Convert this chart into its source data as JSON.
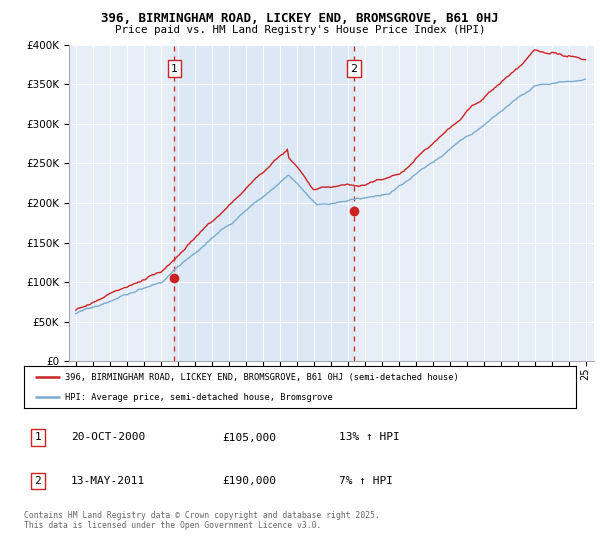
{
  "title": "396, BIRMINGHAM ROAD, LICKEY END, BROMSGROVE, B61 0HJ",
  "subtitle": "Price paid vs. HM Land Registry's House Price Index (HPI)",
  "x_start_year": 1995,
  "x_end_year": 2025,
  "y_min": 0,
  "y_max": 400000,
  "y_ticks": [
    0,
    50000,
    100000,
    150000,
    200000,
    250000,
    300000,
    350000,
    400000
  ],
  "y_tick_labels": [
    "£0",
    "£50K",
    "£100K",
    "£150K",
    "£200K",
    "£250K",
    "£300K",
    "£350K",
    "£400K"
  ],
  "hpi_color": "#7aabcf",
  "price_color": "#cc2222",
  "marker1_year": 2000.8,
  "marker1_price": 105000,
  "marker2_year": 2011.37,
  "marker2_price": 190000,
  "shade_color": "#dce8f5",
  "legend_line1": "396, BIRMINGHAM ROAD, LICKEY END, BROMSGROVE, B61 0HJ (semi-detached house)",
  "legend_line2": "HPI: Average price, semi-detached house, Bromsgrove",
  "table_row1": [
    "1",
    "20-OCT-2000",
    "£105,000",
    "13% ↑ HPI"
  ],
  "table_row2": [
    "2",
    "13-MAY-2011",
    "£190,000",
    "7% ↑ HPI"
  ],
  "footer": "Contains HM Land Registry data © Crown copyright and database right 2025.\nThis data is licensed under the Open Government Licence v3.0.",
  "bg_color": "#e8eef8",
  "plot_bg": "#e8eef8"
}
